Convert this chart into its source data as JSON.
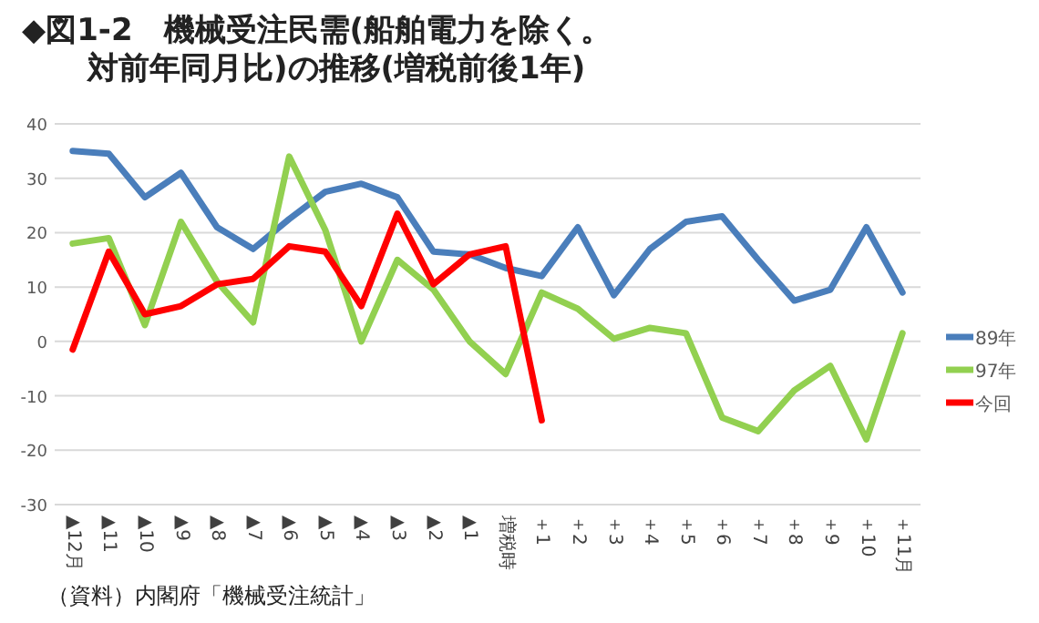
{
  "chart_data": {
    "type": "line",
    "title": "◆図1-2　機械受注民需(船舶電力を除く。",
    "subtitle": "対前年同月比)の推移(増税前後1年)",
    "categories": [
      "▲12月",
      "▲11",
      "▲10",
      "▲9",
      "▲8",
      "▲7",
      "▲6",
      "▲5",
      "▲4",
      "▲3",
      "▲2",
      "▲1",
      "増税時",
      "＋1",
      "＋2",
      "＋3",
      "＋4",
      "＋5",
      "＋6",
      "＋7",
      "＋8",
      "＋9",
      "＋10",
      "＋11月"
    ],
    "series": [
      {
        "name": "89年",
        "color": "#4a7ebb",
        "values": [
          35,
          34.5,
          26.5,
          31,
          21,
          17,
          22.5,
          27.5,
          29,
          26.5,
          16.5,
          16,
          13.5,
          12,
          21,
          8.5,
          17,
          22,
          23,
          15,
          7.5,
          9.5,
          21,
          9
        ]
      },
      {
        "name": "97年",
        "color": "#92d050",
        "values": [
          18,
          19,
          3,
          22,
          11,
          3.5,
          34,
          20.5,
          0,
          15,
          9.5,
          0,
          -6,
          9,
          6,
          0.5,
          2.5,
          1.5,
          -14,
          -16.5,
          -9,
          -4.5,
          -18,
          1.5
        ]
      },
      {
        "name": "今回",
        "color": "#ff0000",
        "values": [
          -1.5,
          16.5,
          5,
          6.5,
          10.5,
          11.5,
          17.5,
          16.5,
          6.5,
          23.5,
          10.5,
          16,
          17.5,
          -14.5,
          null,
          null,
          null,
          null,
          null,
          null,
          null,
          null,
          null,
          null
        ]
      }
    ],
    "ylim": [
      -30,
      40
    ],
    "yticks": [
      40,
      30,
      20,
      10,
      0,
      {
        "value": -10,
        "label": "-10"
      },
      {
        "value": -20,
        "label": "-20"
      },
      {
        "value": -30,
        "label": "-30"
      }
    ],
    "grid": "y",
    "legend": "right",
    "marker": "none",
    "line_style": "solid",
    "annotations": [
      "（資料）内閣府「機械受注統計」"
    ]
  }
}
